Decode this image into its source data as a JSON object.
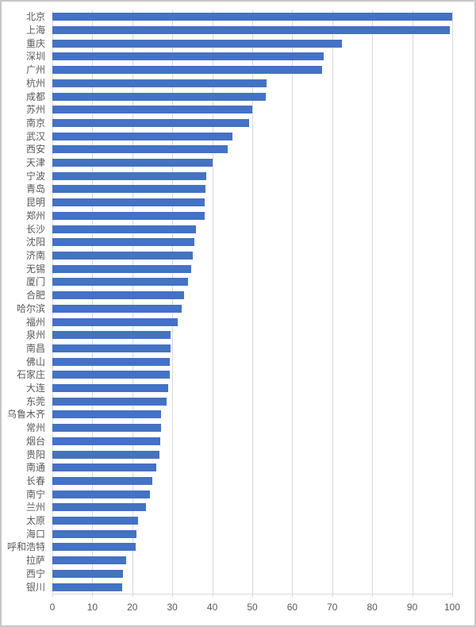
{
  "chart_data": {
    "type": "bar",
    "orientation": "horizontal",
    "title": "",
    "xlabel": "",
    "ylabel": "",
    "xlim": [
      0,
      100
    ],
    "xticks": [
      0,
      10,
      20,
      30,
      40,
      50,
      60,
      70,
      80,
      90,
      100
    ],
    "grid": "vertical",
    "legend": "none",
    "bar_color": "#4472c4",
    "gridline_color": "#d9d9d9",
    "axis_text_color": "#595959",
    "frame_color": "#c6c6c6",
    "categories": [
      "北京",
      "上海",
      "重庆",
      "深圳",
      "广州",
      "杭州",
      "成都",
      "苏州",
      "南京",
      "武汉",
      "西安",
      "天津",
      "宁波",
      "青岛",
      "昆明",
      "郑州",
      "长沙",
      "沈阳",
      "济南",
      "无锡",
      "厦门",
      "合肥",
      "哈尔滨",
      "福州",
      "泉州",
      "南昌",
      "佛山",
      "石家庄",
      "大连",
      "东莞",
      "乌鲁木齐",
      "常州",
      "烟台",
      "贵阳",
      "南通",
      "长春",
      "南宁",
      "兰州",
      "太原",
      "海口",
      "呼和浩特",
      "拉萨",
      "西宁",
      "银川"
    ],
    "values": [
      100,
      99.5,
      72.4,
      67.8,
      67.4,
      53.6,
      53.4,
      50,
      49.3,
      45,
      43.8,
      40,
      38.5,
      38.2,
      38,
      38,
      36,
      35.6,
      35.2,
      34.7,
      33.9,
      32.9,
      32.4,
      31.4,
      29.6,
      29.5,
      29.4,
      29.4,
      29,
      28.6,
      27.2,
      27.1,
      27,
      26.8,
      26,
      25,
      24.4,
      23.5,
      21.5,
      21,
      20.9,
      18.5,
      17.6,
      17.4
    ]
  }
}
